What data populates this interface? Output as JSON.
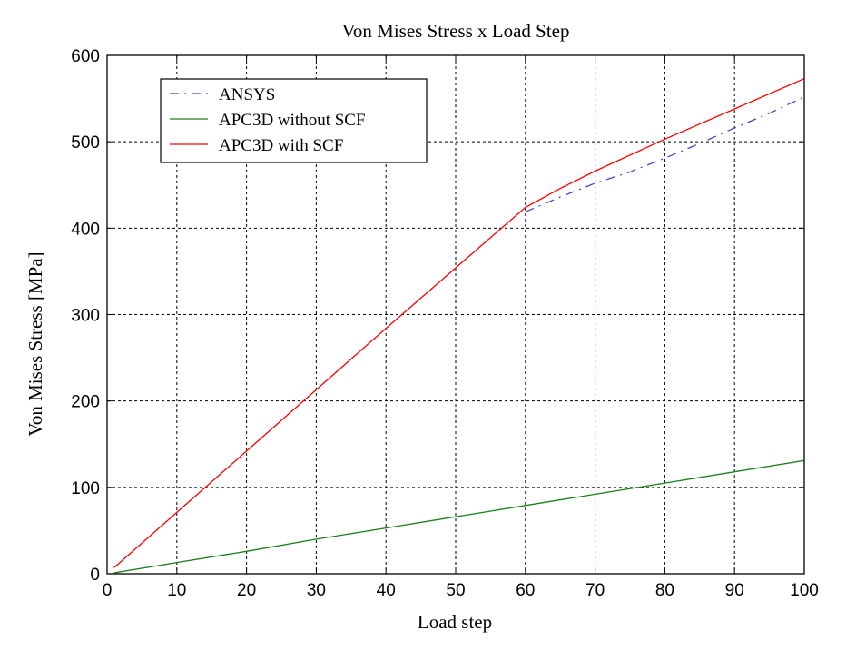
{
  "chart_data": {
    "type": "line",
    "title": "Von Mises Stress x Load Step",
    "xlabel": "Load step",
    "ylabel": "Von Mises Stress [MPa]",
    "xlim": [
      0,
      100
    ],
    "ylim": [
      0,
      600
    ],
    "xticks": [
      0,
      10,
      20,
      30,
      40,
      50,
      60,
      70,
      80,
      90,
      100
    ],
    "yticks": [
      0,
      100,
      200,
      300,
      400,
      500,
      600
    ],
    "grid": true,
    "legend_position": "top-left",
    "series": [
      {
        "name": "ANSYS",
        "color": "#3a4fc4",
        "line_style": "dash-dot",
        "x": [
          60,
          65,
          70,
          75,
          80,
          85,
          90,
          95,
          100
        ],
        "y": [
          419,
          436,
          452,
          465,
          481,
          498,
          516,
          533,
          552
        ]
      },
      {
        "name": "APC3D without SCF",
        "color": "#1a7f1a",
        "line_style": "solid",
        "x": [
          1,
          10,
          20,
          30,
          40,
          50,
          60,
          70,
          80,
          90,
          100
        ],
        "y": [
          1,
          13,
          26,
          40,
          53,
          66,
          79,
          92,
          105,
          118,
          131
        ]
      },
      {
        "name": "APC3D with SCF",
        "color": "#ff0000",
        "line_style": "solid",
        "x": [
          1,
          10,
          20,
          30,
          40,
          50,
          60,
          65,
          70,
          80,
          90,
          100
        ],
        "y": [
          7,
          71,
          142,
          213,
          284,
          354,
          424,
          446,
          466,
          503,
          538,
          573
        ]
      }
    ]
  }
}
